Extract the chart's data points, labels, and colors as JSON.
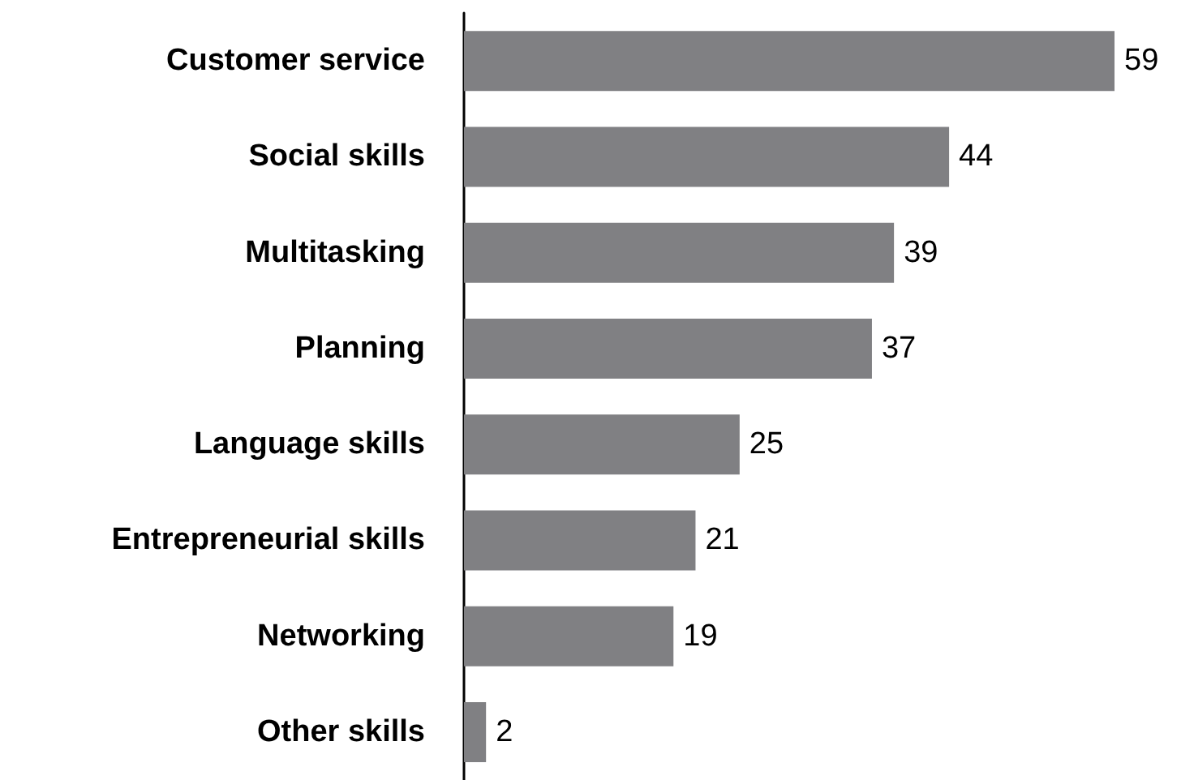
{
  "chart_data": {
    "type": "bar",
    "orientation": "horizontal",
    "categories": [
      "Customer service",
      "Social skills",
      "Multitasking",
      "Planning",
      "Language skills",
      "Entrepreneurial skills",
      "Networking",
      "Other skills"
    ],
    "values": [
      59,
      44,
      39,
      37,
      25,
      21,
      19,
      2
    ],
    "color": "#808083",
    "data_labels": true
  }
}
